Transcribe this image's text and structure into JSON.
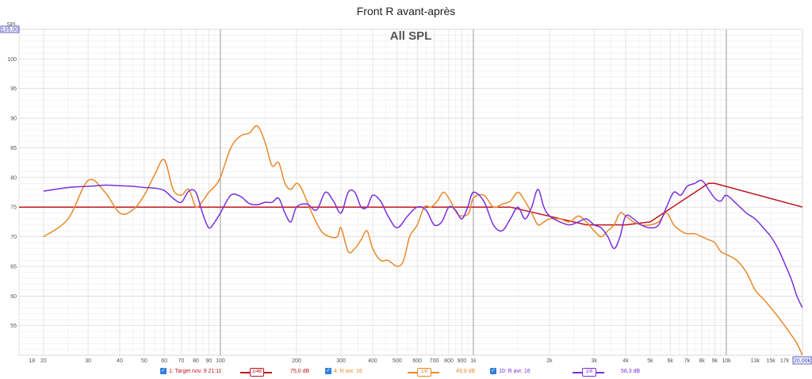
{
  "title": "Front R avant-après",
  "chart_title": "All SPL",
  "colors": {
    "target": "#c0141c",
    "orange": "#e8892a",
    "purple": "#7b2fe0",
    "axis_highlight": "#2f2fb5"
  },
  "chart_data": {
    "type": "line",
    "ylabel": "SPL",
    "ylim": [
      50,
      105
    ],
    "y_top_label": "105,00",
    "y_ticks": [
      55,
      60,
      65,
      70,
      75,
      80,
      85,
      90,
      95,
      100
    ],
    "xlim": [
      16,
      20000
    ],
    "x_scale": "log",
    "x_ticks": [
      {
        "v": 18,
        "label": "18"
      },
      {
        "v": 20,
        "label": "20"
      },
      {
        "v": 30,
        "label": "30"
      },
      {
        "v": 40,
        "label": "40"
      },
      {
        "v": 50,
        "label": "50"
      },
      {
        "v": 60,
        "label": "60"
      },
      {
        "v": 70,
        "label": "70"
      },
      {
        "v": 80,
        "label": "80"
      },
      {
        "v": 90,
        "label": "90"
      },
      {
        "v": 100,
        "label": "100"
      },
      {
        "v": 200,
        "label": "200"
      },
      {
        "v": 300,
        "label": "300"
      },
      {
        "v": 400,
        "label": "400"
      },
      {
        "v": 500,
        "label": "500"
      },
      {
        "v": 600,
        "label": "600"
      },
      {
        "v": 700,
        "label": "700"
      },
      {
        "v": 800,
        "label": "800"
      },
      {
        "v": 900,
        "label": "900"
      },
      {
        "v": 1000,
        "label": "1k"
      },
      {
        "v": 2000,
        "label": "2k"
      },
      {
        "v": 3000,
        "label": "3k"
      },
      {
        "v": 4000,
        "label": "4k"
      },
      {
        "v": 5000,
        "label": "5k"
      },
      {
        "v": 6000,
        "label": "6k"
      },
      {
        "v": 7000,
        "label": "7k"
      },
      {
        "v": 8000,
        "label": "8k"
      },
      {
        "v": 9000,
        "label": "9k"
      },
      {
        "v": 10000,
        "label": "10k"
      },
      {
        "v": 13000,
        "label": "13k"
      },
      {
        "v": 15000,
        "label": "15k"
      },
      {
        "v": 17000,
        "label": "17k"
      }
    ],
    "x_end_label": "20,00k",
    "series": [
      {
        "name": "1: Target nov. 9 21:11",
        "smoothing": "1/48",
        "level": "75,0 dB",
        "points": [
          [
            16,
            75
          ],
          [
            1400,
            75
          ],
          [
            2800,
            72
          ],
          [
            4000,
            72
          ],
          [
            5000,
            72.5
          ],
          [
            8500,
            79
          ],
          [
            9000,
            79
          ],
          [
            20000,
            75
          ]
        ]
      },
      {
        "name": "4: R avr. 16",
        "smoothing": "1/6",
        "level": "49,9 dB",
        "points": [
          [
            20,
            70
          ],
          [
            25,
            73
          ],
          [
            30,
            79.5
          ],
          [
            35,
            77.5
          ],
          [
            40,
            74
          ],
          [
            45,
            74.5
          ],
          [
            50,
            77
          ],
          [
            55,
            80.5
          ],
          [
            60,
            83
          ],
          [
            65,
            78
          ],
          [
            70,
            77
          ],
          [
            75,
            78
          ],
          [
            80,
            75
          ],
          [
            85,
            76
          ],
          [
            90,
            77.5
          ],
          [
            95,
            78.5
          ],
          [
            100,
            80
          ],
          [
            110,
            85
          ],
          [
            120,
            87
          ],
          [
            130,
            87.5
          ],
          [
            140,
            88.7
          ],
          [
            150,
            86
          ],
          [
            160,
            82
          ],
          [
            170,
            82.5
          ],
          [
            180,
            79
          ],
          [
            190,
            78
          ],
          [
            200,
            79
          ],
          [
            210,
            78
          ],
          [
            230,
            74
          ],
          [
            250,
            71
          ],
          [
            270,
            70
          ],
          [
            290,
            70
          ],
          [
            300,
            71.5
          ],
          [
            320,
            67.5
          ],
          [
            340,
            68
          ],
          [
            360,
            69.5
          ],
          [
            380,
            71
          ],
          [
            400,
            68
          ],
          [
            430,
            66
          ],
          [
            460,
            66
          ],
          [
            500,
            65
          ],
          [
            530,
            66
          ],
          [
            560,
            70
          ],
          [
            600,
            72
          ],
          [
            640,
            75
          ],
          [
            680,
            75
          ],
          [
            720,
            76
          ],
          [
            760,
            77.5
          ],
          [
            800,
            76.5
          ],
          [
            860,
            74
          ],
          [
            900,
            73.5
          ],
          [
            960,
            74
          ],
          [
            1000,
            76.5
          ],
          [
            1100,
            77
          ],
          [
            1200,
            75
          ],
          [
            1300,
            75.5
          ],
          [
            1400,
            76
          ],
          [
            1500,
            77.5
          ],
          [
            1600,
            76
          ],
          [
            1700,
            74
          ],
          [
            1800,
            72
          ],
          [
            1900,
            72.5
          ],
          [
            2000,
            73
          ],
          [
            2200,
            73
          ],
          [
            2400,
            72.5
          ],
          [
            2600,
            73.5
          ],
          [
            2800,
            72.5
          ],
          [
            3000,
            71
          ],
          [
            3200,
            70
          ],
          [
            3400,
            71
          ],
          [
            3600,
            72
          ],
          [
            3800,
            74
          ],
          [
            4000,
            73.5
          ],
          [
            4300,
            72.5
          ],
          [
            4600,
            72
          ],
          [
            5000,
            72
          ],
          [
            5400,
            72.5
          ],
          [
            5800,
            74
          ],
          [
            6200,
            72
          ],
          [
            6600,
            71
          ],
          [
            7000,
            70.5
          ],
          [
            7500,
            70.5
          ],
          [
            8000,
            70
          ],
          [
            8500,
            69.5
          ],
          [
            9000,
            69
          ],
          [
            9500,
            67.5
          ],
          [
            10000,
            67
          ],
          [
            11000,
            66
          ],
          [
            12000,
            64
          ],
          [
            13000,
            61
          ],
          [
            14000,
            59.5
          ],
          [
            15000,
            58
          ],
          [
            16000,
            56.5
          ],
          [
            17000,
            55
          ],
          [
            18000,
            53.5
          ],
          [
            19000,
            52
          ],
          [
            20000,
            50
          ]
        ]
      },
      {
        "name": "10: R avr. 16",
        "smoothing": "1/6",
        "level": "58,3 dB",
        "points": [
          [
            20,
            77.7
          ],
          [
            25,
            78.3
          ],
          [
            30,
            78.5
          ],
          [
            35,
            78.7
          ],
          [
            40,
            78.6
          ],
          [
            45,
            78.5
          ],
          [
            50,
            78.3
          ],
          [
            55,
            78.2
          ],
          [
            60,
            77.8
          ],
          [
            65,
            76.5
          ],
          [
            70,
            75.8
          ],
          [
            75,
            77.7
          ],
          [
            80,
            77.5
          ],
          [
            85,
            74
          ],
          [
            90,
            71.5
          ],
          [
            95,
            72.5
          ],
          [
            100,
            74
          ],
          [
            110,
            77
          ],
          [
            120,
            76.8
          ],
          [
            130,
            75.6
          ],
          [
            140,
            75.4
          ],
          [
            150,
            75.8
          ],
          [
            160,
            75.8
          ],
          [
            170,
            76.5
          ],
          [
            180,
            74
          ],
          [
            190,
            72.5
          ],
          [
            200,
            75
          ],
          [
            220,
            75.5
          ],
          [
            240,
            74.5
          ],
          [
            260,
            77.5
          ],
          [
            280,
            76
          ],
          [
            300,
            74
          ],
          [
            320,
            77.5
          ],
          [
            340,
            77.5
          ],
          [
            360,
            75
          ],
          [
            380,
            75
          ],
          [
            400,
            77
          ],
          [
            430,
            76
          ],
          [
            460,
            73.5
          ],
          [
            500,
            71.5
          ],
          [
            550,
            73.5
          ],
          [
            600,
            75
          ],
          [
            650,
            74.5
          ],
          [
            700,
            72
          ],
          [
            750,
            72.5
          ],
          [
            800,
            75
          ],
          [
            850,
            74.5
          ],
          [
            900,
            73
          ],
          [
            950,
            75
          ],
          [
            1000,
            77.5
          ],
          [
            1100,
            76
          ],
          [
            1200,
            72
          ],
          [
            1300,
            71
          ],
          [
            1400,
            73
          ],
          [
            1500,
            75
          ],
          [
            1600,
            73
          ],
          [
            1700,
            75
          ],
          [
            1800,
            78
          ],
          [
            1900,
            75
          ],
          [
            2000,
            73.5
          ],
          [
            2200,
            72.5
          ],
          [
            2400,
            72
          ],
          [
            2600,
            72.5
          ],
          [
            2800,
            73
          ],
          [
            3000,
            72
          ],
          [
            3200,
            71.5
          ],
          [
            3400,
            70
          ],
          [
            3600,
            68
          ],
          [
            3800,
            70
          ],
          [
            4000,
            73.5
          ],
          [
            4300,
            73
          ],
          [
            4600,
            72
          ],
          [
            5000,
            71.5
          ],
          [
            5400,
            72
          ],
          [
            5800,
            75
          ],
          [
            6200,
            77.5
          ],
          [
            6600,
            77
          ],
          [
            7000,
            78.5
          ],
          [
            7500,
            79
          ],
          [
            8000,
            79.5
          ],
          [
            8500,
            78
          ],
          [
            9000,
            76.5
          ],
          [
            9500,
            76
          ],
          [
            10000,
            77
          ],
          [
            11000,
            75.5
          ],
          [
            12000,
            74
          ],
          [
            13000,
            73
          ],
          [
            14000,
            71.5
          ],
          [
            15000,
            70
          ],
          [
            16000,
            68
          ],
          [
            17000,
            65.5
          ],
          [
            18000,
            63
          ],
          [
            19000,
            60
          ],
          [
            20000,
            58
          ]
        ]
      }
    ]
  }
}
